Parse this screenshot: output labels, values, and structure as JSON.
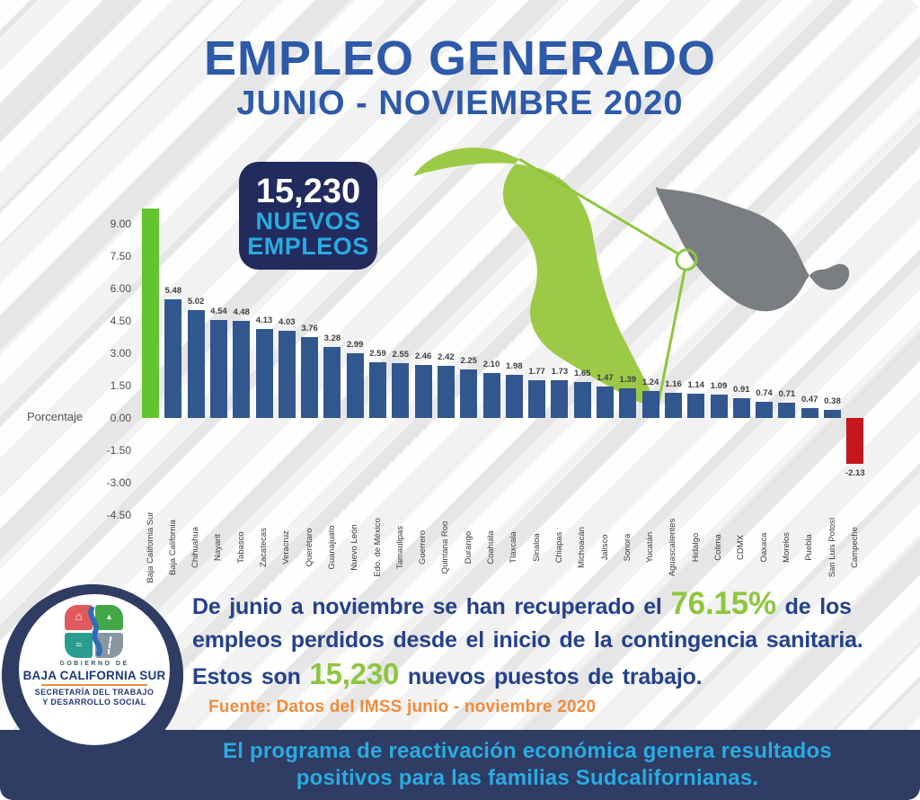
{
  "title": {
    "line1": "EMPLEO GENERADO",
    "line2": "JUNIO - NOVIEMBRE 2020"
  },
  "badge": {
    "number": "15,230",
    "line1": "NUEVOS",
    "line2": "EMPLEOS"
  },
  "chart_data": {
    "type": "bar",
    "title": "Empleo generado junio - noviembre 2020 por entidad (porcentaje)",
    "xlabel": "",
    "ylabel": "Porcentaje",
    "ylim": [
      -4.5,
      9.0
    ],
    "grid": false,
    "legend": "none",
    "yticks": [
      "9.00",
      "7.50",
      "6.00",
      "4.50",
      "3.00",
      "1.50",
      "0.00",
      "-1.50",
      "-3.00",
      "-4.50"
    ],
    "categories": [
      "Baja California Sur",
      "Baja California",
      "Chihuahua",
      "Nayarit",
      "Tabasco",
      "Zacatecas",
      "Veracruz",
      "Querétaro",
      "Guanajuato",
      "Nuevo León",
      "Edo. de México",
      "Tamaulipas",
      "Guerrero",
      "Quintana Roo",
      "Durango",
      "Coahuila",
      "Tlaxcala",
      "Sinaloa",
      "Chiapas",
      "Michoacán",
      "Jalisco",
      "Sonora",
      "Yucatán",
      "Aguascalientes",
      "Hidalgo",
      "Colima",
      "CDMX",
      "Oaxaca",
      "Morelos",
      "Puebla",
      "San Luis Potosí",
      "Campeche"
    ],
    "values": [
      9.7,
      5.48,
      5.02,
      4.54,
      4.48,
      4.13,
      4.03,
      3.76,
      3.28,
      2.99,
      2.59,
      2.55,
      2.46,
      2.42,
      2.25,
      2.1,
      1.98,
      1.77,
      1.73,
      1.65,
      1.47,
      1.39,
      1.24,
      1.16,
      1.14,
      1.09,
      0.91,
      0.74,
      0.71,
      0.47,
      0.38,
      -2.13
    ],
    "labels": [
      "",
      "5.48",
      "5.02",
      "4.54",
      "4.48",
      "4.13",
      "4.03",
      "3.76",
      "3.28",
      "2.99",
      "2.59",
      "2.55",
      "2.46",
      "2.42",
      "2.25",
      "2.10",
      "1.98",
      "1.77",
      "1.73",
      "1.65",
      "1.47",
      "1.39",
      "1.24",
      "1.16",
      "1.14",
      "1.09",
      "0.91",
      "0.74",
      "0.71",
      "0.47",
      "0.38",
      "-2.13"
    ],
    "colors": {
      "positive": "#32578f",
      "highlight": "#62c52e",
      "negative": "#c4161c"
    }
  },
  "colors": {
    "title_blue": "#2d5aa9",
    "text_navy": "#24418c",
    "badge_bg": "#222b5e",
    "badge_accent": "#29abe2",
    "accent_green": "#8dc63f",
    "orange": "#f18a3b",
    "banner_bg": "#2f3c64",
    "map_gray": "#7a7d81",
    "map_green": "#9cca47"
  },
  "summary": {
    "line1_pre": "De junio a noviembre se han recuperado el ",
    "pct": "76.15%",
    "line1_post": " de los",
    "line2": "empleos perdidos desde el inicio de la contingencia sanitaria.",
    "line3_pre": "Estos son ",
    "jobs": "15,230",
    "line3_post": " nuevos puestos de trabajo."
  },
  "source": {
    "text": "Fuente: Datos del IMSS junio - noviembre 2020"
  },
  "footer": {
    "line1": "El programa de reactivación económica genera resultados",
    "line2": "positivos para las familias Sudcalifornianas."
  },
  "logo": {
    "gobierno": "GOBIERNO DE",
    "state": "BAJA CALIFORNIA SUR",
    "dept1": "SECRETARÍA DEL TRABAJO",
    "dept2": "Y DESARROLLO SOCIAL",
    "icons": {
      "housing": "⌂",
      "landscape": "▲",
      "sea": "≈"
    }
  }
}
